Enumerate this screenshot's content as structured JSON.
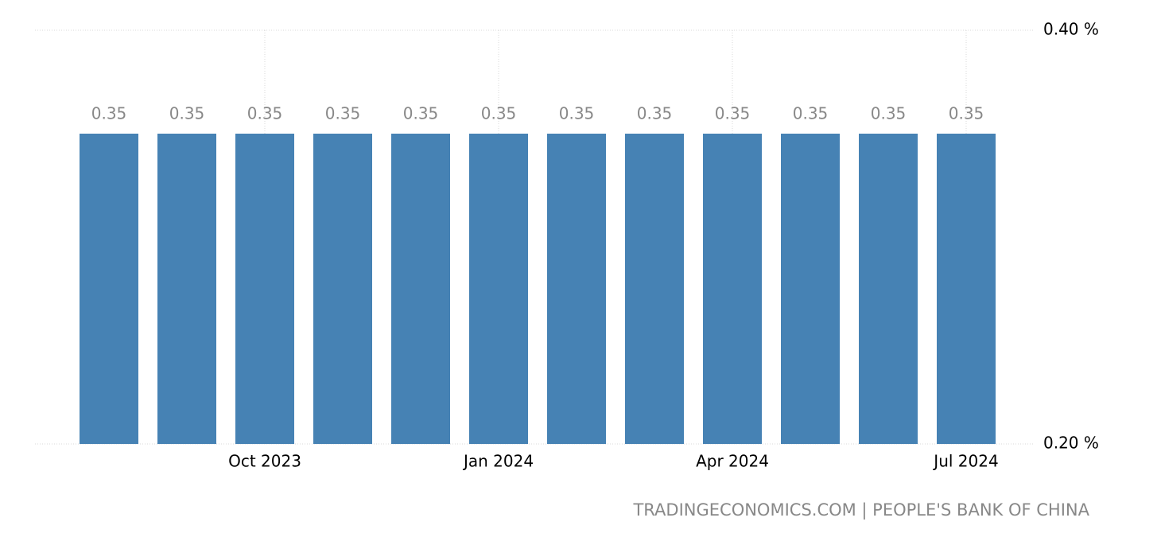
{
  "chart_data": {
    "type": "bar",
    "categories": [
      null,
      null,
      "Oct 2023",
      null,
      null,
      "Jan 2024",
      null,
      null,
      "Apr 2024",
      null,
      null,
      "Jul 2024"
    ],
    "values": [
      0.35,
      0.35,
      0.35,
      0.35,
      0.35,
      0.35,
      0.35,
      0.35,
      0.35,
      0.35,
      0.35,
      0.35
    ],
    "color": "#4682b4",
    "ylim": [
      0.2,
      0.4
    ],
    "yticks": [
      {
        "value": 0.2,
        "label": "0.20 %"
      },
      {
        "value": 0.4,
        "label": "0.40 %"
      }
    ],
    "grid": true,
    "source": "TRADINGECONOMICS.COM | PEOPLE'S BANK OF CHINA"
  }
}
